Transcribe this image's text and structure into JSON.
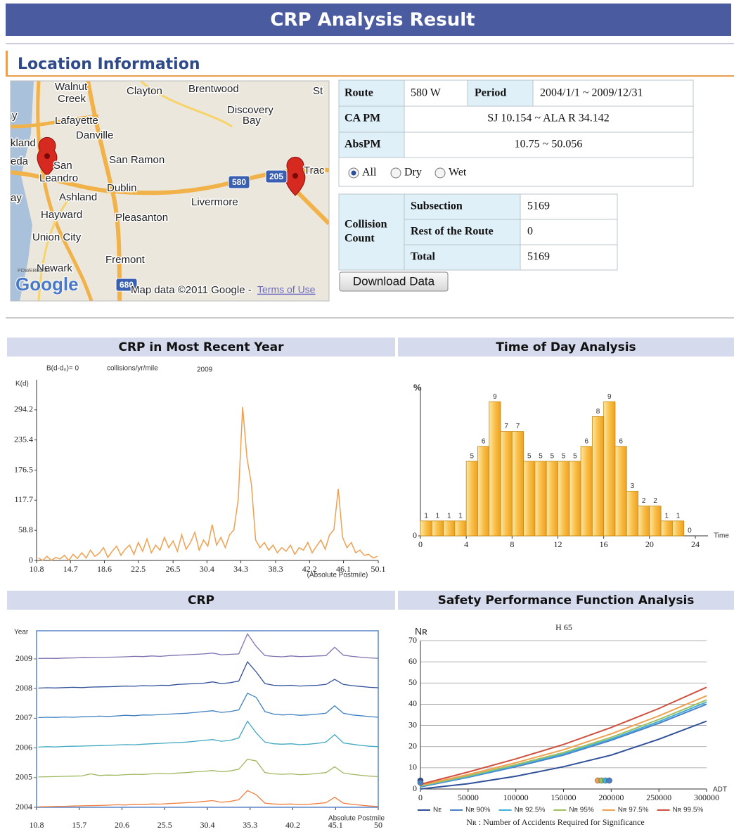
{
  "header": {
    "title": "CRP Analysis Result"
  },
  "location": {
    "heading": "Location Information"
  },
  "map": {
    "labels": [
      "Walnut",
      "Creek",
      "Clayton",
      "Brentwood",
      "St",
      "Discovery",
      "Bay",
      "Lafayette",
      "y",
      "Danville",
      "kland",
      "eda",
      "San",
      "San Ramon",
      "Leandro",
      "Dublin",
      "Trac",
      "ay",
      "Ashland",
      "Livermore",
      "Hayward",
      "Pleasanton",
      "Union City",
      "Fremont",
      "Newark"
    ],
    "shields": [
      "580",
      "205",
      "680"
    ],
    "powered": "POWERED BY",
    "logo": "Google",
    "attribution": "Map data ©2011 Google - ",
    "terms": "Terms of Use"
  },
  "info": {
    "rows": [
      [
        "Route",
        "580 W",
        "Period",
        "2004/1/1 ~ 2009/12/31"
      ],
      [
        "CA PM",
        "SJ 10.154 ~ ALA R 34.142"
      ],
      [
        "AbsPM",
        "10.75 ~ 50.056"
      ]
    ],
    "conditions": [
      "All",
      "Dry",
      "Wet"
    ],
    "selected": "All"
  },
  "collision": {
    "label": [
      "Collision",
      "Count"
    ],
    "rows": [
      [
        "Subsection",
        5169
      ],
      [
        "Rest of the Route",
        0
      ],
      [
        "Total",
        5169
      ]
    ]
  },
  "download_button": "Download Data",
  "chart_data": [
    {
      "type": "line",
      "title": "CRP in Most Recent Year",
      "annotations": [
        "B(d-d₀)= 0",
        "collisions/yr/mile",
        "2009"
      ],
      "ylabel": "K(d)",
      "xlabel": "(Absolute Postmile)",
      "color": "#f0a050",
      "x": [
        11,
        11.5,
        12,
        12.5,
        13,
        13.5,
        14,
        14.5,
        15,
        15.5,
        16,
        16.5,
        17,
        17.5,
        18,
        18.5,
        19,
        19.5,
        20,
        20.5,
        21,
        21.5,
        22,
        22.5,
        23,
        23.5,
        24,
        24.5,
        25,
        25.5,
        26,
        26.5,
        27,
        27.5,
        28,
        28.5,
        29,
        29.5,
        30,
        30.5,
        31,
        31.5,
        32,
        32.5,
        33,
        33.5,
        34,
        34.5,
        35,
        35.5,
        36,
        36.5,
        37,
        37.5,
        38,
        38.5,
        39,
        39.5,
        40,
        40.5,
        41,
        41.5,
        42,
        42.5,
        43,
        43.5,
        44,
        44.5,
        45,
        45.5,
        46,
        46.5,
        47,
        47.5,
        48,
        48.5,
        49,
        49.5,
        50
      ],
      "values": [
        5,
        0,
        8,
        0,
        6,
        3,
        10,
        0,
        12,
        4,
        15,
        5,
        20,
        8,
        14,
        25,
        6,
        18,
        28,
        10,
        22,
        30,
        12,
        35,
        18,
        42,
        15,
        30,
        20,
        45,
        25,
        38,
        18,
        50,
        22,
        35,
        55,
        20,
        40,
        28,
        70,
        30,
        45,
        25,
        50,
        60,
        120,
        300,
        200,
        150,
        40,
        25,
        35,
        20,
        30,
        15,
        25,
        18,
        30,
        12,
        25,
        20,
        35,
        15,
        28,
        40,
        22,
        50,
        60,
        140,
        45,
        25,
        35,
        15,
        20,
        10,
        12,
        5,
        8
      ],
      "xlim": [
        10.8,
        50.1
      ],
      "xticks": [
        10.8,
        14.7,
        18.6,
        22.5,
        26.5,
        30.4,
        34.3,
        38.3,
        42.2,
        46.1,
        50.1
      ],
      "ylim": [
        0,
        353
      ],
      "yticks": [
        0,
        58.8,
        117.7,
        176.5,
        235.4,
        294.2
      ],
      "grid": false
    },
    {
      "type": "histogram",
      "title": "Time of Day Analysis",
      "ylabel": "%",
      "xlabel": "Time",
      "color": "#f5a623",
      "bins": [
        0,
        1,
        2,
        3,
        4,
        5,
        6,
        7,
        8,
        9,
        10,
        11,
        12,
        13,
        14,
        15,
        16,
        17,
        18,
        19,
        20,
        21,
        22,
        23,
        24
      ],
      "values": [
        1,
        1,
        1,
        1,
        5,
        6,
        9,
        7,
        7,
        5,
        5,
        5,
        5,
        5,
        6,
        8,
        9,
        6,
        3,
        2,
        2,
        1,
        1,
        0
      ],
      "xlim": [
        0,
        24
      ],
      "xticks": [
        0,
        4,
        8,
        12,
        16,
        20,
        24
      ],
      "ylim": [
        0,
        10
      ],
      "yticks": [
        0
      ],
      "grid": false
    },
    {
      "type": "ridgeline",
      "title": "CRP",
      "ylabel": "Year",
      "xlabel": "Absolute Postmile",
      "x": [
        11,
        12,
        13,
        14,
        15,
        16,
        17,
        18,
        19,
        20,
        21,
        22,
        23,
        24,
        25,
        26,
        27,
        28,
        29,
        30,
        31,
        32,
        33,
        34,
        35,
        36,
        37,
        38,
        39,
        40,
        41,
        42,
        43,
        44,
        45,
        46,
        47,
        48,
        49,
        50
      ],
      "series": [
        {
          "name": "2004",
          "color": "#f08040",
          "values": [
            6,
            8,
            10,
            12,
            15,
            18,
            20,
            22,
            25,
            30,
            28,
            35,
            32,
            40,
            38,
            45,
            50,
            55,
            60,
            70,
            80,
            60,
            70,
            90,
            200,
            150,
            50,
            40,
            35,
            40,
            30,
            35,
            45,
            55,
            120,
            50,
            35,
            25,
            15,
            10
          ]
        },
        {
          "name": "2005",
          "color": "#a0b860",
          "values": [
            8,
            10,
            12,
            15,
            18,
            20,
            45,
            25,
            30,
            28,
            35,
            40,
            38,
            45,
            50,
            45,
            55,
            60,
            70,
            75,
            85,
            70,
            80,
            100,
            220,
            200,
            60,
            45,
            40,
            45,
            35,
            40,
            50,
            60,
            130,
            55,
            40,
            28,
            18,
            12
          ]
        },
        {
          "name": "2006",
          "color": "#40a8c0",
          "values": [
            10,
            15,
            12,
            18,
            20,
            22,
            25,
            28,
            30,
            35,
            40,
            38,
            45,
            50,
            55,
            60,
            65,
            70,
            80,
            90,
            100,
            80,
            90,
            120,
            320,
            180,
            70,
            50,
            45,
            50,
            40,
            45,
            55,
            70,
            160,
            60,
            45,
            30,
            20,
            15
          ]
        },
        {
          "name": "2007",
          "color": "#4080c0",
          "values": [
            8,
            12,
            10,
            15,
            12,
            18,
            20,
            25,
            22,
            28,
            35,
            30,
            40,
            38,
            45,
            50,
            55,
            60,
            70,
            80,
            90,
            70,
            80,
            100,
            300,
            250,
            80,
            50,
            40,
            45,
            35,
            40,
            50,
            60,
            150,
            60,
            40,
            30,
            20,
            12
          ]
        },
        {
          "name": "2008",
          "color": "#30509a",
          "values": [
            6,
            10,
            8,
            12,
            15,
            12,
            18,
            20,
            22,
            25,
            30,
            28,
            35,
            32,
            40,
            38,
            50,
            55,
            60,
            65,
            80,
            60,
            70,
            90,
            320,
            200,
            60,
            40,
            35,
            40,
            30,
            35,
            40,
            50,
            110,
            50,
            35,
            25,
            15,
            10
          ]
        },
        {
          "name": "2009",
          "color": "#8070b0",
          "values": [
            5,
            8,
            6,
            10,
            12,
            15,
            14,
            18,
            20,
            22,
            25,
            30,
            28,
            35,
            30,
            40,
            45,
            50,
            55,
            60,
            70,
            50,
            55,
            60,
            300,
            150,
            40,
            30,
            25,
            35,
            28,
            30,
            35,
            40,
            140,
            45,
            30,
            20,
            12,
            8
          ]
        }
      ],
      "xlim": [
        10.8,
        50
      ],
      "xticks": [
        10.8,
        15.7,
        20.6,
        25.5,
        30.4,
        35.3,
        40.2,
        45.1,
        50
      ],
      "grid": false
    },
    {
      "type": "line",
      "title": "Safety Performance Function Analysis",
      "subtitle": "H 65",
      "ylabel": "Nʀ",
      "xlabel": "ADT",
      "caption": "Nʀ : Number of Accidents Required for Significance",
      "legend": "bottom",
      "x": [
        0,
        50000,
        100000,
        150000,
        200000,
        250000,
        300000
      ],
      "series": [
        {
          "name": "Nᴇ",
          "color": "#30509a",
          "values": [
            0,
            2.5,
            6,
            10.5,
            16,
            23.5,
            32
          ]
        },
        {
          "name": "Nʀ 90%",
          "color": "#4a80c8",
          "values": [
            1,
            5.5,
            10.5,
            16,
            23,
            31,
            40
          ]
        },
        {
          "name": "Nʀ 92.5%",
          "color": "#40b0d8",
          "values": [
            1.2,
            5.8,
            11,
            16.6,
            23.6,
            31.8,
            41
          ]
        },
        {
          "name": "Nʀ 95%",
          "color": "#a0c060",
          "values": [
            1.5,
            6.2,
            11.5,
            17.2,
            24.4,
            32.8,
            42
          ]
        },
        {
          "name": "Nʀ 97.5%",
          "color": "#f0a050",
          "values": [
            1.8,
            6.8,
            12.4,
            18.5,
            26,
            34.5,
            44
          ]
        },
        {
          "name": "Nʀ 99.5%",
          "color": "#d05040",
          "values": [
            2.2,
            8,
            14.2,
            21,
            29,
            38,
            48
          ]
        }
      ],
      "points": {
        "x": [
          0,
          0,
          186000,
          190000,
          194000,
          198000
        ],
        "y": [
          4,
          3,
          4,
          4,
          4,
          4
        ],
        "colors": [
          "#30509a",
          "#4a80c8",
          "#f0a050",
          "#a0c060",
          "#40b0d8",
          "#4a80c8"
        ]
      },
      "xlim": [
        0,
        300000
      ],
      "xticks": [
        0,
        50000,
        100000,
        150000,
        200000,
        250000,
        300000
      ],
      "ylim": [
        0,
        70
      ],
      "yticks": [
        0,
        10,
        20,
        30,
        40,
        50,
        60,
        70
      ],
      "grid": true
    }
  ]
}
